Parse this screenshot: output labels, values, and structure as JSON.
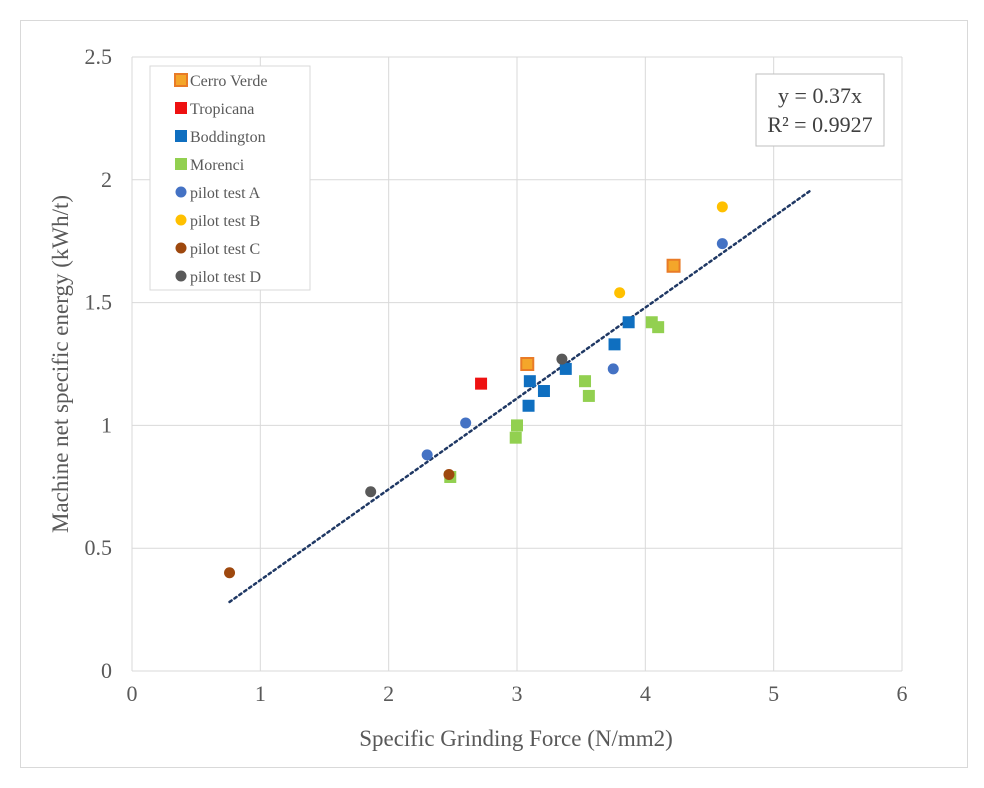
{
  "chart_data": {
    "type": "scatter",
    "xlabel": "Specific Grinding Force (N/mm2)",
    "ylabel": "Machine net specific energy (kWh/t)",
    "xlim": [
      0,
      6
    ],
    "ylim": [
      0,
      2.5
    ],
    "xticks": [
      0,
      1,
      2,
      3,
      4,
      5,
      6
    ],
    "yticks": [
      0,
      0.5,
      1,
      1.5,
      2,
      2.5
    ],
    "xtick_labels": [
      "0",
      "1",
      "2",
      "3",
      "4",
      "5",
      "6"
    ],
    "ytick_labels": [
      "0",
      "0.5",
      "1",
      "1.5",
      "2",
      "2.5"
    ],
    "grid": true,
    "legend_position": "top-left",
    "series": [
      {
        "name": "Cerro Verde",
        "marker": "square",
        "color": "#f4a62a",
        "edge": "#e97b27",
        "points": [
          [
            3.08,
            1.25
          ],
          [
            4.22,
            1.65
          ]
        ]
      },
      {
        "name": "Tropicana",
        "marker": "square",
        "color": "#ee1111",
        "edge": "#ee1111",
        "points": [
          [
            2.72,
            1.17
          ]
        ]
      },
      {
        "name": "Boddington",
        "marker": "square",
        "color": "#0f6fc0",
        "edge": "#0f6fc0",
        "points": [
          [
            3.09,
            1.08
          ],
          [
            3.1,
            1.18
          ],
          [
            3.21,
            1.14
          ],
          [
            3.38,
            1.23
          ],
          [
            3.76,
            1.33
          ],
          [
            3.87,
            1.42
          ]
        ]
      },
      {
        "name": "Morenci",
        "marker": "square",
        "color": "#92d050",
        "edge": "#92d050",
        "points": [
          [
            2.48,
            0.79
          ],
          [
            2.99,
            0.95
          ],
          [
            3.0,
            1.0
          ],
          [
            3.53,
            1.18
          ],
          [
            3.56,
            1.12
          ],
          [
            4.05,
            1.42
          ],
          [
            4.1,
            1.4
          ]
        ]
      },
      {
        "name": "pilot test A",
        "marker": "circle",
        "color": "#4472c4",
        "edge": "#4472c4",
        "points": [
          [
            2.3,
            0.88
          ],
          [
            2.6,
            1.01
          ],
          [
            3.75,
            1.23
          ],
          [
            4.6,
            1.74
          ]
        ]
      },
      {
        "name": "pilot test B",
        "marker": "circle",
        "color": "#ffc000",
        "edge": "#ffc000",
        "points": [
          [
            3.8,
            1.54
          ],
          [
            4.6,
            1.89
          ]
        ]
      },
      {
        "name": "pilot test C",
        "marker": "circle",
        "color": "#9e480e",
        "edge": "#9e480e",
        "points": [
          [
            0.76,
            0.4
          ],
          [
            2.47,
            0.8
          ]
        ]
      },
      {
        "name": "pilot test D",
        "marker": "circle",
        "color": "#595959",
        "edge": "#595959",
        "points": [
          [
            1.86,
            0.73
          ],
          [
            3.35,
            1.27
          ]
        ]
      }
    ],
    "trendline": {
      "slope": 0.37,
      "x_range": [
        0.76,
        5.29
      ],
      "color": "#1f3864",
      "style": "dotted",
      "equation": "y = 0.37x",
      "r_squared": "R² = 0.9927"
    }
  }
}
